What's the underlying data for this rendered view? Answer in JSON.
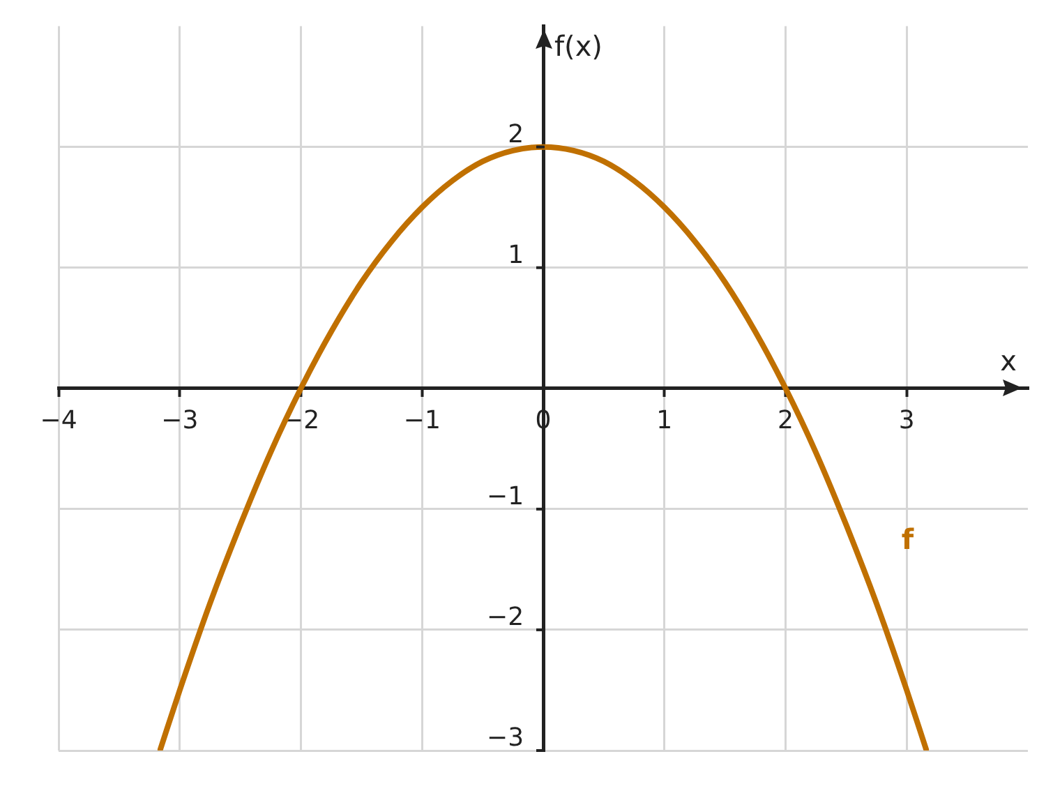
{
  "chart_data": {
    "type": "line",
    "xlabel": "x",
    "ylabel": "f(x)",
    "xlim": [
      -4,
      4
    ],
    "ylim": [
      -3,
      3
    ],
    "xticks": [
      {
        "value": -4,
        "label": "−4"
      },
      {
        "value": -3,
        "label": "−3"
      },
      {
        "value": -2,
        "label": "−2"
      },
      {
        "value": -1,
        "label": "−1"
      },
      {
        "value": 0,
        "label": "0"
      },
      1,
      2,
      3
    ],
    "yticks": [
      {
        "value": -3,
        "label": "−3"
      },
      {
        "value": -2,
        "label": "−2"
      },
      {
        "value": -1,
        "label": "−1"
      },
      {
        "value": 0,
        "label": null
      },
      1,
      2
    ],
    "series": [
      {
        "name": "f",
        "color": "#c07000",
        "x": [
          -3.16,
          -3,
          -2.75,
          -2.5,
          -2.25,
          -2,
          -1.75,
          -1.5,
          -1.25,
          -1,
          -0.75,
          -0.5,
          -0.25,
          0,
          0.25,
          0.5,
          0.75,
          1,
          1.25,
          1.5,
          1.75,
          2,
          2.25,
          2.5,
          2.75,
          3,
          3.16
        ],
        "values": [
          -2.99,
          -2.5,
          -1.78,
          -1.13,
          -0.53,
          0,
          0.47,
          0.88,
          1.22,
          1.5,
          1.72,
          1.88,
          1.97,
          2,
          1.97,
          1.88,
          1.72,
          1.5,
          1.22,
          0.88,
          0.47,
          0,
          -0.53,
          -1.13,
          -1.78,
          -2.5,
          -2.99
        ]
      }
    ],
    "grid": true,
    "legend": false,
    "marker": "none",
    "line_style": "solid"
  }
}
